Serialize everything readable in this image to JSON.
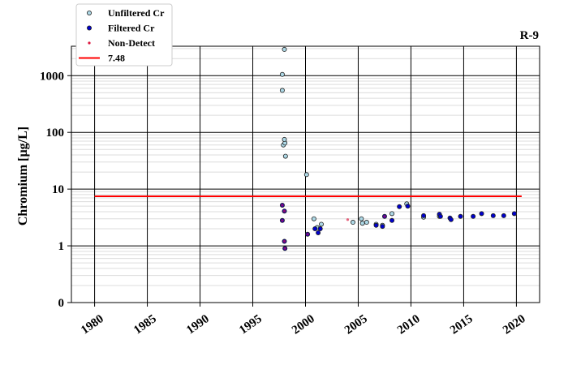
{
  "chart_data": {
    "type": "scatter",
    "title": "R-9",
    "ylabel": "Chromium [µg/L]",
    "xlabel": "",
    "xlim": [
      1977.8,
      2022.2
    ],
    "xticks": [
      1980,
      1985,
      1990,
      1995,
      2000,
      2005,
      2010,
      2015,
      2020
    ],
    "xtick_labels": [
      "1980",
      "1985",
      "1990",
      "1995",
      "2000",
      "2005",
      "2010",
      "2015",
      "2020"
    ],
    "ylim_log": [
      0.1,
      3300
    ],
    "yscale": "log",
    "yticks": [
      0.1,
      1,
      10,
      100,
      1000
    ],
    "ytick_labels": [
      "0",
      "1",
      "10",
      "100",
      "1000"
    ],
    "grid": true,
    "legend_position": "top-left",
    "colors": {
      "unfiltered_fill": "#add8e6",
      "filtered_fill": "#0000cd",
      "nondetect": "#dc143c",
      "reference_line": "#ff0000"
    },
    "series": [
      {
        "name": "Unfiltered Cr",
        "marker": "open-circle",
        "points": [
          [
            1998.0,
            2900
          ],
          [
            1997.8,
            1050
          ],
          [
            1997.8,
            550
          ],
          [
            1997.9,
            60
          ],
          [
            1998.05,
            65
          ],
          [
            1998.0,
            75
          ],
          [
            1998.1,
            38
          ],
          [
            2000.1,
            18
          ],
          [
            2000.8,
            3.0
          ],
          [
            2001.1,
            2.1
          ],
          [
            2001.5,
            2.4
          ],
          [
            2004.5,
            2.6
          ],
          [
            2005.3,
            3.0
          ],
          [
            2005.4,
            2.5
          ],
          [
            2005.8,
            2.6
          ],
          [
            2006.7,
            2.4
          ],
          [
            2007.3,
            2.3
          ],
          [
            2008.2,
            3.7
          ],
          [
            2009.6,
            5.5
          ],
          [
            2011.2,
            3.2
          ],
          [
            2012.7,
            3.3
          ]
        ]
      },
      {
        "name": "Filtered Cr",
        "marker": "filled-circle",
        "points": [
          [
            1997.8,
            5.2
          ],
          [
            1998.0,
            4.1
          ],
          [
            1997.8,
            2.8
          ],
          [
            1998.0,
            1.2
          ],
          [
            1998.05,
            0.9
          ],
          [
            2000.2,
            1.6
          ],
          [
            2000.9,
            2.0
          ],
          [
            2001.2,
            1.7
          ],
          [
            2001.4,
            2.0
          ],
          [
            2006.7,
            2.3
          ],
          [
            2007.3,
            2.2
          ],
          [
            2007.5,
            3.3
          ],
          [
            2008.2,
            2.8
          ],
          [
            2008.9,
            4.9
          ],
          [
            2009.7,
            5.0
          ],
          [
            2011.2,
            3.4
          ],
          [
            2012.7,
            3.6
          ],
          [
            2012.8,
            3.3
          ],
          [
            2013.7,
            3.1
          ],
          [
            2013.8,
            2.9
          ],
          [
            2014.7,
            3.3
          ],
          [
            2015.9,
            3.3
          ],
          [
            2016.7,
            3.7
          ],
          [
            2017.8,
            3.4
          ],
          [
            2018.8,
            3.4
          ],
          [
            2019.8,
            3.7
          ]
        ]
      },
      {
        "name": "Non-Detect",
        "marker": "dot",
        "points": [
          [
            1997.8,
            5.2
          ],
          [
            1998.0,
            4.1
          ],
          [
            1997.8,
            2.8
          ],
          [
            1998.0,
            1.2
          ],
          [
            1998.05,
            0.9
          ],
          [
            2000.2,
            1.6
          ],
          [
            2004.0,
            2.9
          ],
          [
            2007.5,
            3.3
          ]
        ]
      }
    ],
    "reference_line": {
      "name": "7.48",
      "value": 7.48,
      "x_range": [
        1980,
        2020.5
      ]
    }
  }
}
